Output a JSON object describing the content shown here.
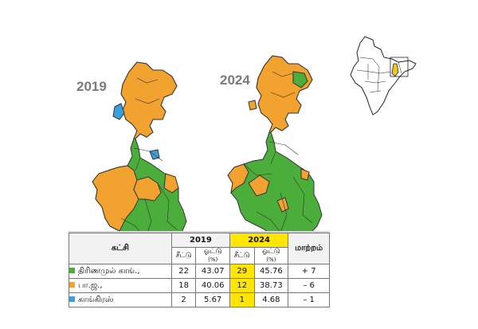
{
  "years": {
    "left": "2019",
    "right": "2024"
  },
  "colors": {
    "tmc": "#4cae3a",
    "bjp": "#f2a22e",
    "congress": "#3a9fdc",
    "highlight": "#ffe600",
    "india_state": "#f3c623"
  },
  "table": {
    "party_header": "கட்சி",
    "year_2019": "2019",
    "year_2024": "2024",
    "seats_label": "சீட்டு",
    "votes_label": "ஓட்டு",
    "percent_label": "(%)",
    "change_header": "மாற்றம்",
    "rows": [
      {
        "party": "திரிணமுல் காங்.,",
        "color": "tmc",
        "seats_2019": "22",
        "votes_2019": "43.07",
        "seats_2024": "29",
        "votes_2024": "45.76",
        "change": "+ 7"
      },
      {
        "party": "பா.ஜ.,",
        "color": "bjp",
        "seats_2019": "18",
        "votes_2019": "40.06",
        "seats_2024": "12",
        "votes_2024": "38.73",
        "change": "– 6"
      },
      {
        "party": "காங்கிரஸ்",
        "color": "congress",
        "seats_2019": "2",
        "votes_2019": "5.67",
        "seats_2024": "1",
        "votes_2024": "4.68",
        "change": "– 1"
      }
    ]
  }
}
